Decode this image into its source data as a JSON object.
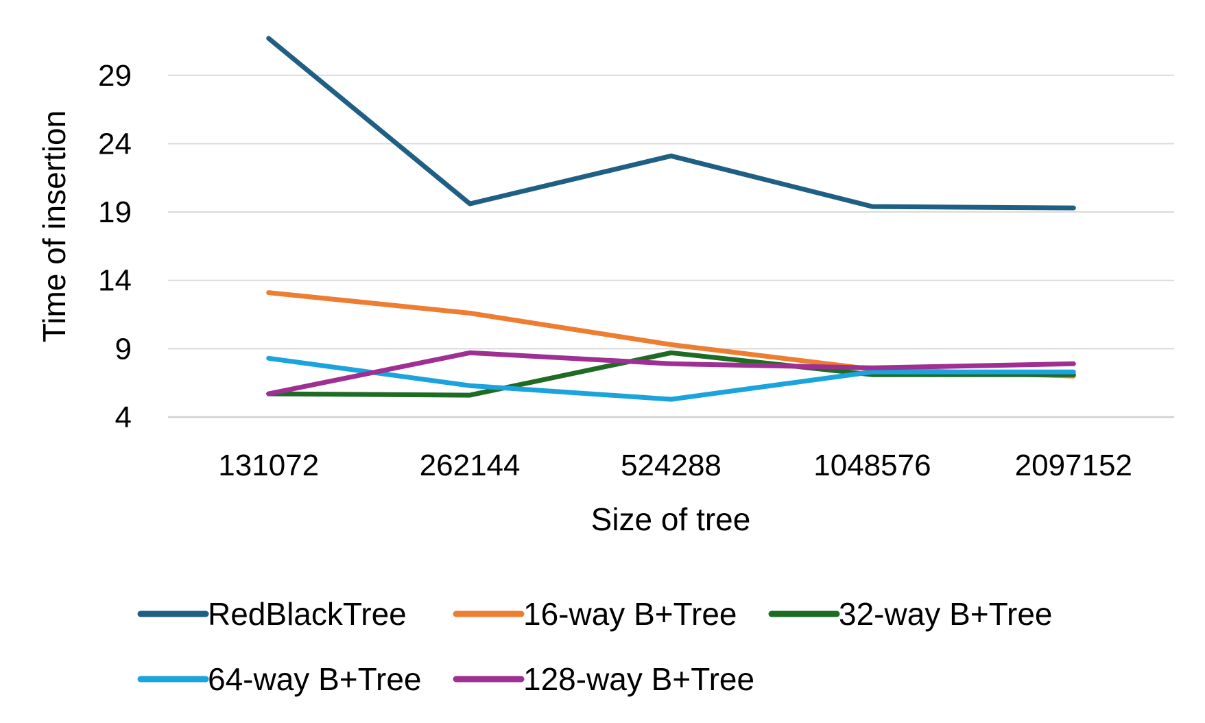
{
  "chart_data": {
    "type": "line",
    "title": "",
    "xlabel": "Size of tree",
    "ylabel": "Time of insertion",
    "categories": [
      "131072",
      "262144",
      "524288",
      "1048576",
      "2097152"
    ],
    "yticks": [
      4,
      9,
      14,
      19,
      24,
      29
    ],
    "ylim": [
      4,
      32.5
    ],
    "grid": true,
    "legend_position": "bottom",
    "series": [
      {
        "name": "RedBlackTree",
        "color": "#1f5f84",
        "values": [
          31.7,
          19.6,
          23.1,
          19.4,
          19.3
        ]
      },
      {
        "name": "16-way B+Tree",
        "color": "#ed7d31",
        "values": [
          13.1,
          11.6,
          9.3,
          7.5,
          7.0
        ]
      },
      {
        "name": "32-way B+Tree",
        "color": "#1e6b24",
        "values": [
          5.7,
          5.6,
          8.7,
          7.1,
          7.1
        ]
      },
      {
        "name": "64-way B+Tree",
        "color": "#1aa3dc",
        "values": [
          8.3,
          6.3,
          5.3,
          7.3,
          7.3
        ]
      },
      {
        "name": "128-way B+Tree",
        "color": "#9e3093",
        "values": [
          5.7,
          8.7,
          7.9,
          7.6,
          7.9
        ]
      }
    ]
  }
}
